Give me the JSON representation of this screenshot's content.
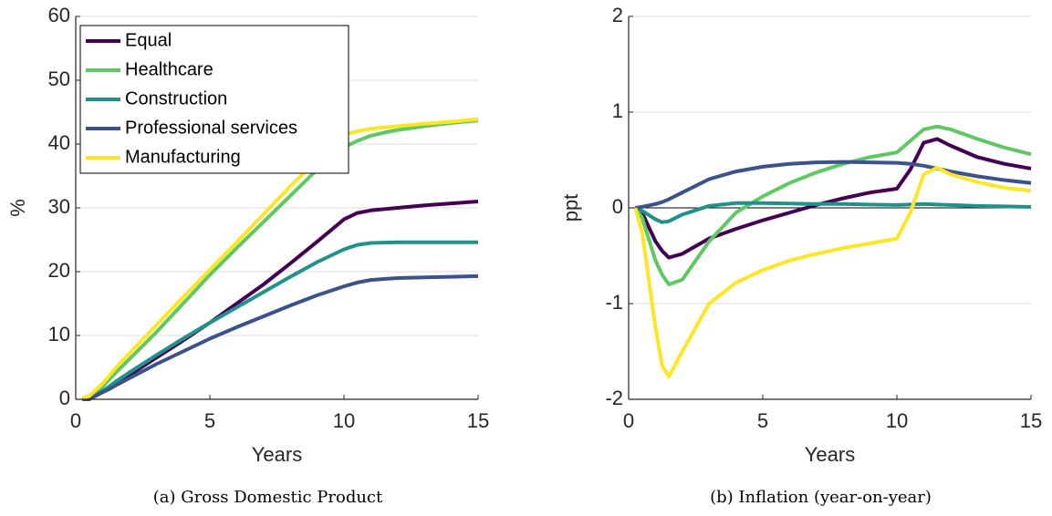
{
  "chart_data": [
    {
      "type": "line",
      "caption": "(a) Gross Domestic Product",
      "xlabel": "Years",
      "ylabel": "%",
      "x": [
        0.25,
        0.5,
        1,
        1.25,
        1.5,
        2,
        3,
        4,
        5,
        6,
        7,
        8,
        9,
        10,
        10.5,
        11,
        11.5,
        12,
        13,
        14,
        15
      ],
      "series": [
        {
          "name": "Equal",
          "color": "#440154",
          "values": [
            0,
            0,
            1.2,
            1.8,
            2.5,
            3.8,
            6.5,
            9.2,
            12,
            15,
            18,
            21.3,
            24.7,
            28.2,
            29.2,
            29.6,
            29.8,
            30,
            30.4,
            30.7,
            31
          ]
        },
        {
          "name": "Healthcare",
          "color": "#5ec962",
          "values": [
            0,
            0.3,
            2,
            3.1,
            4.2,
            6.3,
            10.5,
            15,
            19.5,
            23.7,
            27.8,
            31.9,
            36,
            39.5,
            40.5,
            41.3,
            41.8,
            42.2,
            42.8,
            43.3,
            43.7
          ]
        },
        {
          "name": "Construction",
          "color": "#21918c",
          "values": [
            0,
            0,
            1.3,
            2,
            2.8,
            4.2,
            6.9,
            9.5,
            12,
            14.4,
            16.8,
            19.2,
            21.5,
            23.5,
            24.2,
            24.5,
            24.55,
            24.6,
            24.6,
            24.6,
            24.6
          ]
        },
        {
          "name": "Professional services",
          "color": "#3b528b",
          "values": [
            0,
            0,
            1.1,
            1.6,
            2.2,
            3.3,
            5.5,
            7.5,
            9.5,
            11.3,
            13,
            14.7,
            16.3,
            17.7,
            18.3,
            18.7,
            18.85,
            19,
            19.1,
            19.2,
            19.3
          ]
        },
        {
          "name": "Manufacturing",
          "color": "#fde725",
          "values": [
            0.2,
            0.5,
            2.5,
            3.7,
            5,
            7.2,
            11.6,
            16,
            20.3,
            24.6,
            29,
            33.4,
            37.5,
            41.5,
            42,
            42.4,
            42.6,
            42.8,
            43.2,
            43.5,
            43.9
          ]
        }
      ],
      "xlim": [
        0,
        15
      ],
      "xticks": [
        0,
        5,
        10,
        15
      ],
      "ylim": [
        0,
        60
      ],
      "yticks": [
        0,
        10,
        20,
        30,
        40,
        50,
        60
      ],
      "grid": true,
      "legend": "upper left"
    },
    {
      "type": "line",
      "caption": "(b) Inflation (year-on-year)",
      "xlabel": "Years",
      "ylabel": "ppt",
      "x": [
        0.25,
        0.5,
        1,
        1.25,
        1.5,
        2,
        3,
        4,
        5,
        6,
        7,
        8,
        9,
        10,
        10.5,
        11,
        11.5,
        12,
        13,
        14,
        15
      ],
      "series": [
        {
          "name": "Equal",
          "color": "#440154",
          "values": [
            0,
            -0.05,
            -0.35,
            -0.45,
            -0.52,
            -0.48,
            -0.32,
            -0.22,
            -0.13,
            -0.05,
            0.03,
            0.1,
            0.16,
            0.2,
            0.4,
            0.68,
            0.72,
            0.65,
            0.53,
            0.46,
            0.41
          ]
        },
        {
          "name": "Healthcare",
          "color": "#5ec962",
          "values": [
            0,
            -0.1,
            -0.55,
            -0.7,
            -0.8,
            -0.75,
            -0.35,
            -0.05,
            0.12,
            0.26,
            0.37,
            0.46,
            0.53,
            0.58,
            0.7,
            0.82,
            0.85,
            0.82,
            0.72,
            0.63,
            0.56
          ]
        },
        {
          "name": "Construction",
          "color": "#21918c",
          "values": [
            0,
            -0.03,
            -0.12,
            -0.15,
            -0.14,
            -0.07,
            0.02,
            0.05,
            0.05,
            0.045,
            0.04,
            0.04,
            0.035,
            0.03,
            0.035,
            0.04,
            0.035,
            0.03,
            0.02,
            0.015,
            0.01
          ]
        },
        {
          "name": "Professional services",
          "color": "#3b528b",
          "values": [
            0,
            0.01,
            0.04,
            0.06,
            0.09,
            0.16,
            0.3,
            0.38,
            0.43,
            0.46,
            0.475,
            0.48,
            0.475,
            0.47,
            0.46,
            0.44,
            0.41,
            0.38,
            0.33,
            0.29,
            0.26
          ]
        },
        {
          "name": "Manufacturing",
          "color": "#fde725",
          "values": [
            0,
            -0.25,
            -1.25,
            -1.65,
            -1.76,
            -1.5,
            -1.0,
            -0.78,
            -0.65,
            -0.55,
            -0.48,
            -0.42,
            -0.37,
            -0.32,
            -0.05,
            0.35,
            0.42,
            0.35,
            0.27,
            0.21,
            0.18
          ]
        }
      ],
      "xlim": [
        0,
        15
      ],
      "xticks": [
        0,
        5,
        10,
        15
      ],
      "ylim": [
        -2,
        2
      ],
      "yticks": [
        -2,
        -1,
        0,
        1,
        2
      ],
      "grid": true,
      "zero_line": true
    }
  ]
}
